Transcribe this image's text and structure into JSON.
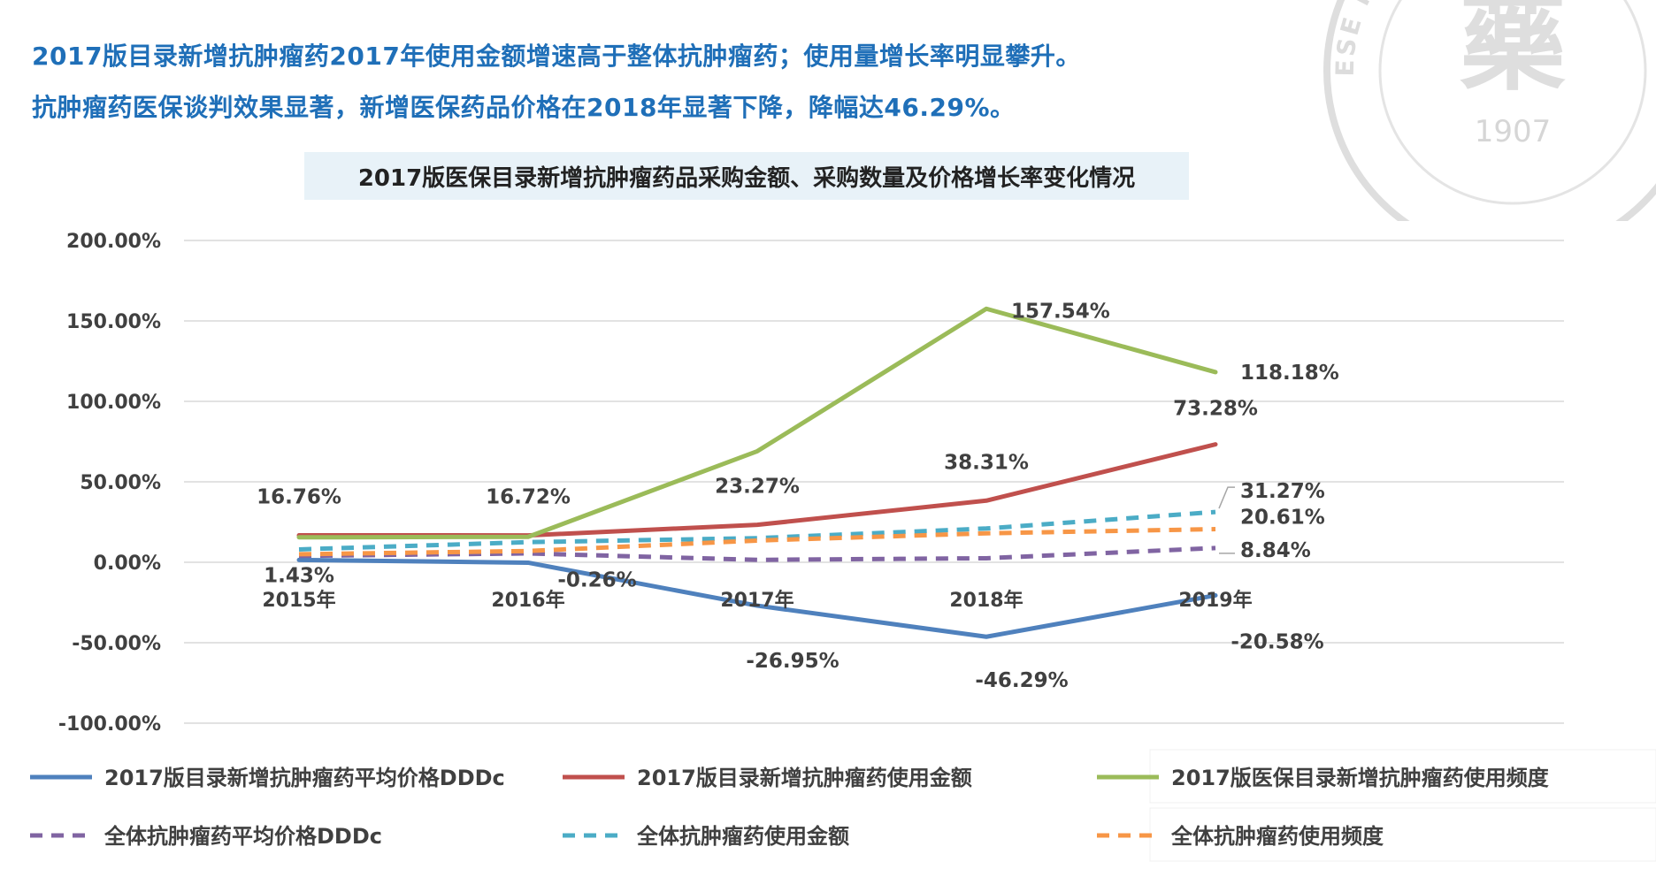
{
  "headline": {
    "line1": "2017版目录新增抗肿瘤药2017年使用金额增速高于整体抗肿瘤药；使用量增长率明显攀升。",
    "line2": "抗肿瘤药医保谈判效果显著，新增医保药品价格在2018年显著下降，降幅达46.29%。"
  },
  "seal": {
    "year": "1907",
    "ring_text": "CHINESE PHARMACEUTICAL ASSOCIATION",
    "char": "藥"
  },
  "chart_data": {
    "type": "line",
    "title": "2017版医保目录新增抗肿瘤药品采购金额、采购数量及价格增长率变化情况",
    "categories": [
      "2015年",
      "2016年",
      "2017年",
      "2018年",
      "2019年"
    ],
    "ylim": [
      -100,
      200
    ],
    "yticks": [
      200,
      150,
      100,
      50,
      0,
      -50,
      -100
    ],
    "ytick_labels": [
      "200.00%",
      "150.00%",
      "100.00%",
      "50.00%",
      "0.00%",
      "-50.00%",
      "-100.00%"
    ],
    "grid": true,
    "legend_position": "bottom",
    "series": [
      {
        "name": "2017版目录新增抗肿瘤药平均价格DDDc",
        "color": "#4f81bd",
        "dashed": false,
        "values": [
          1.43,
          -0.26,
          -26.95,
          -46.29,
          -20.58
        ],
        "labels": [
          "1.43%",
          "-0.26%",
          "-26.95%",
          "-46.29%",
          "-20.58%"
        ]
      },
      {
        "name": "2017版目录新增抗肿瘤药使用金额",
        "color": "#c0504d",
        "dashed": false,
        "values": [
          16.76,
          16.72,
          23.27,
          38.31,
          73.28
        ],
        "labels": [
          "16.76%",
          "16.72%",
          "23.27%",
          "38.31%",
          "73.28%"
        ]
      },
      {
        "name": "2017版医保目录新增抗肿瘤药使用频度",
        "color": "#9bbb59",
        "dashed": false,
        "values": [
          15.5,
          15.8,
          69,
          157.54,
          118.18
        ],
        "labels": [
          "",
          "",
          "",
          "157.54%",
          "118.18%"
        ]
      },
      {
        "name": "全体抗肿瘤药平均价格DDDc",
        "color": "#8064a2",
        "dashed": true,
        "values": [
          4,
          5.5,
          1.5,
          2.5,
          8.84
        ],
        "labels": [
          "",
          "",
          "",
          "",
          "8.84%"
        ]
      },
      {
        "name": "全体抗肿瘤药使用金额",
        "color": "#4bacc6",
        "dashed": true,
        "values": [
          8,
          12.5,
          15,
          21,
          31.27
        ],
        "labels": [
          "",
          "",
          "",
          "",
          "31.27%"
        ]
      },
      {
        "name": "全体抗肿瘤药使用频度",
        "color": "#f79646",
        "dashed": true,
        "values": [
          5,
          7,
          13.5,
          18,
          20.61
        ],
        "labels": [
          "",
          "",
          "",
          "",
          "20.61%"
        ]
      }
    ]
  }
}
